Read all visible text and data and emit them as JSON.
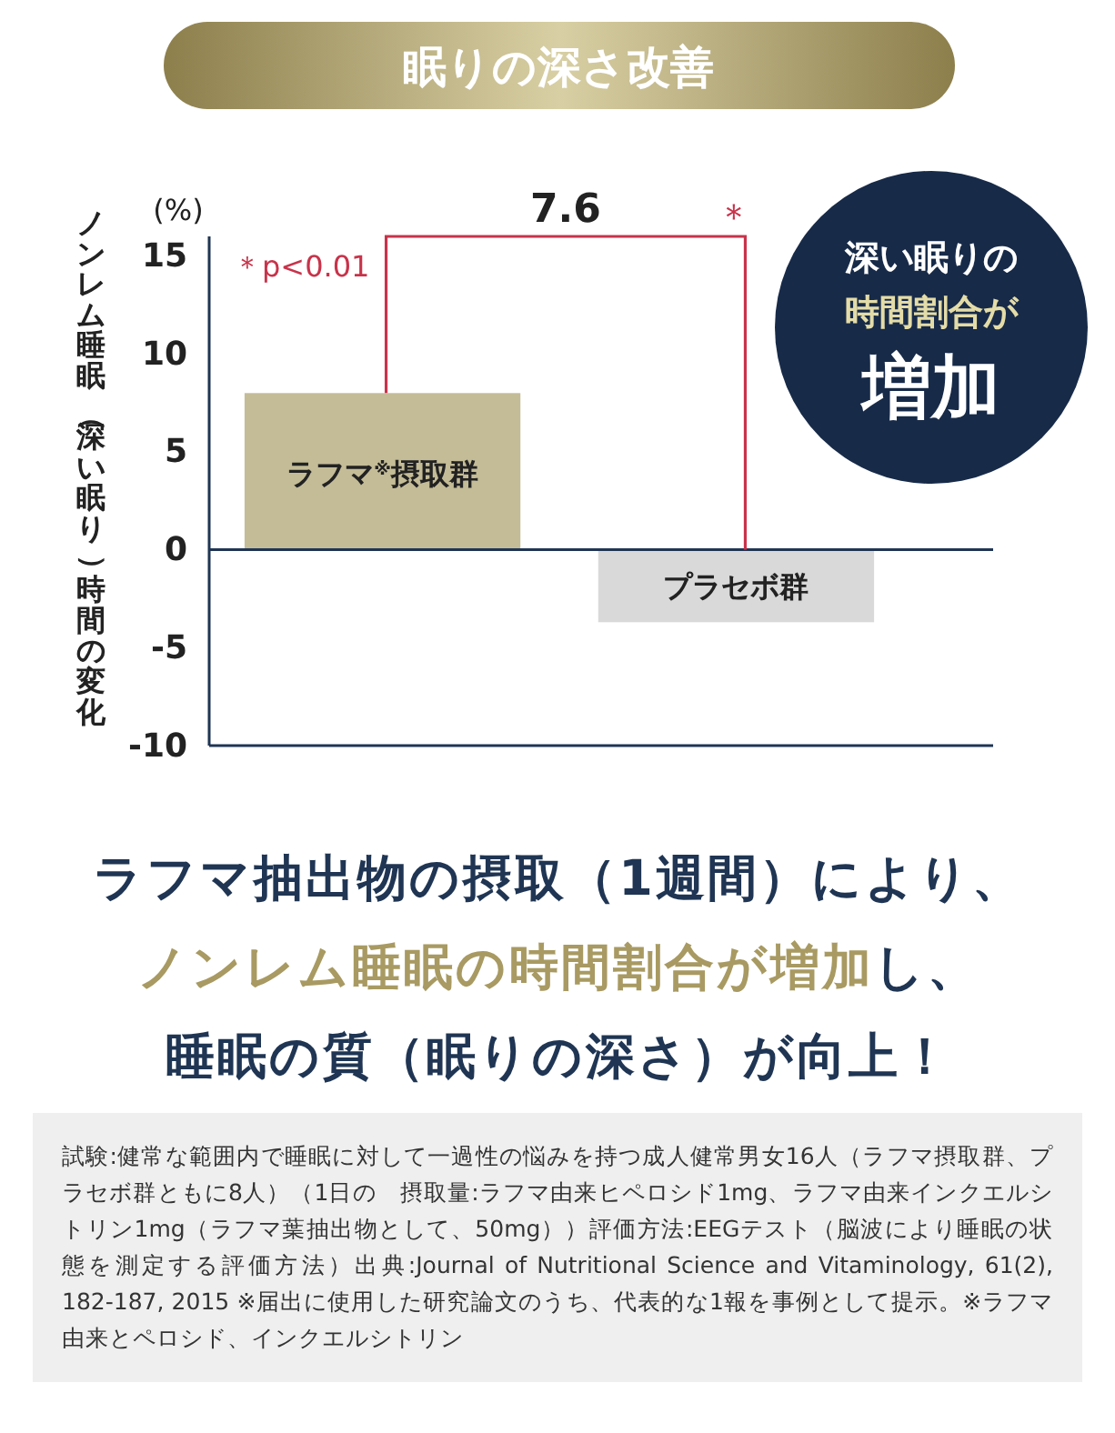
{
  "chart_data": {
    "type": "bar",
    "title": "眠りの深さ改善",
    "ylabel": "ノンレム睡眠（深い眠り）時間の変化",
    "categories": [
      "ラフマ$^{※}$摂取群",
      "プラセボ群"
    ],
    "values": [
      8.0,
      -3.7
    ],
    "colors": [
      "#c4bc97",
      "#d9d9d9"
    ],
    "ylim": [
      -10,
      16
    ],
    "yticks": [
      -10,
      -5,
      0,
      5,
      10,
      15
    ],
    "grid": false,
    "annotations": [
      "(%)",
      "＊p<0.01",
      "7.6",
      "＊",
      "深い眠りの",
      "時間割合が",
      "増加",
      "ラフマ抽出物の摂取（1週間）により、",
      "ノンレム睡眠の時間割合が増加",
      "し、",
      "睡眠の質（眠りの深さ）が向上！",
      "試験:健常な範囲内で睡眠に対して一過性の悩みを持つ成人健常男女16人（ラフマ摂取群、プラセボ群ともに8人）（1日の　摂取量:ラフマ由来ヒペロシド1mg、ラフマ由来インクエルシトリン1mg（ラフマ葉抽出物として、50mg））評価方法:EEGテスト（脳波により睡眠の状態を測定する評価方法）出典:Journal of Nutritional Science and Vitaminology, 61(2), 182-187, 2015 ※届出に使用した研究論文のうち、代表的な1報を事例として提示。※ラフマ由来とペロシド、インクエルシトリン"
    ]
  }
}
